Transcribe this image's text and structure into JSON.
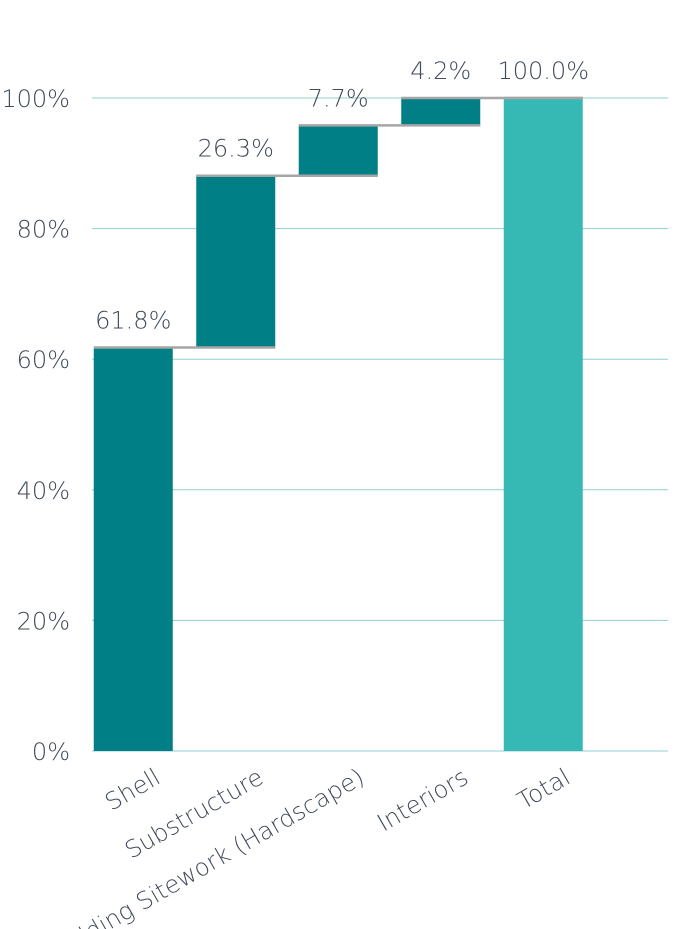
{
  "chart_data": {
    "type": "bar",
    "subtype": "waterfall",
    "categories": [
      "Shell",
      "Substructure",
      "Building Sitework (Hardscape)",
      "Interiors",
      "Total"
    ],
    "values": [
      61.8,
      26.3,
      7.7,
      4.2,
      100.0
    ],
    "data_labels": [
      "61.8%",
      "26.3%",
      "7.7%",
      "4.2%",
      "100.0%"
    ],
    "is_total": [
      false,
      false,
      false,
      false,
      true
    ],
    "title": "",
    "xlabel": "",
    "ylabel": "",
    "ylim": [
      0,
      100
    ],
    "yticks": [
      0,
      20,
      40,
      60,
      80,
      100
    ],
    "ytick_labels": [
      "0%",
      "20%",
      "40%",
      "60%",
      "80%",
      "100%"
    ],
    "grid": true,
    "legend": "none",
    "colors": {
      "increment": "#007f86",
      "total": "#36b8b4",
      "gridline": "#8fcfd1",
      "connector": "#a6a6a6",
      "text": "#404a5a"
    }
  }
}
